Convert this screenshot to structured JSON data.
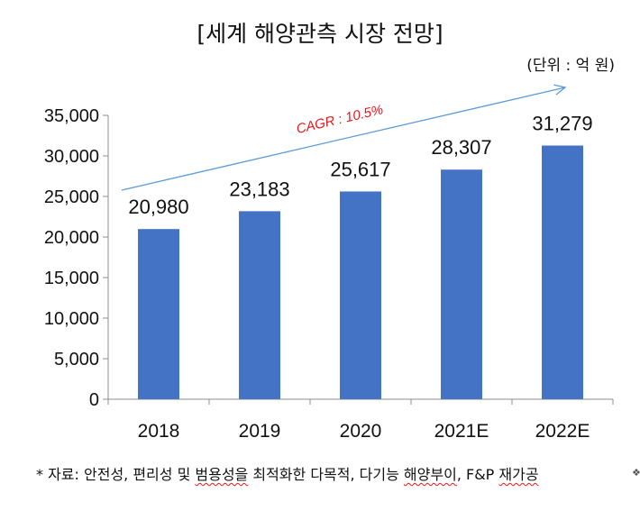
{
  "chart_data": {
    "type": "bar",
    "title": "[세계 해양관측 시장 전망]",
    "unit_label": "(단위 : 억 원)",
    "categories": [
      "2018",
      "2019",
      "2020",
      "2021E",
      "2022E"
    ],
    "values": [
      20980,
      23183,
      25617,
      28307,
      31279
    ],
    "value_labels": [
      "20,980",
      "23,183",
      "25,617",
      "28,307",
      "31,279"
    ],
    "ylim": [
      0,
      35000
    ],
    "yticks": [
      0,
      5000,
      10000,
      15000,
      20000,
      25000,
      30000,
      35000
    ],
    "ytick_labels": [
      "0",
      "5,000",
      "10,000",
      "15,000",
      "20,000",
      "25,000",
      "30,000",
      "35,000"
    ],
    "xlabel": "",
    "ylabel": "",
    "grid": false,
    "annotation": "CAGR : 10.5%",
    "bar_color": "#4472c4",
    "arrow_color": "#5b9bd5",
    "annotation_color": "#e8171c"
  },
  "footnote": {
    "prefix": "* 자료: 안전성, 편리성 및 ",
    "underlined_1": "범용성을",
    "middle": " 최적화한 다목적, 다기능 ",
    "underlined_2": "해양부이",
    "suffix": ", F&P ",
    "underlined_3": "재가공"
  }
}
